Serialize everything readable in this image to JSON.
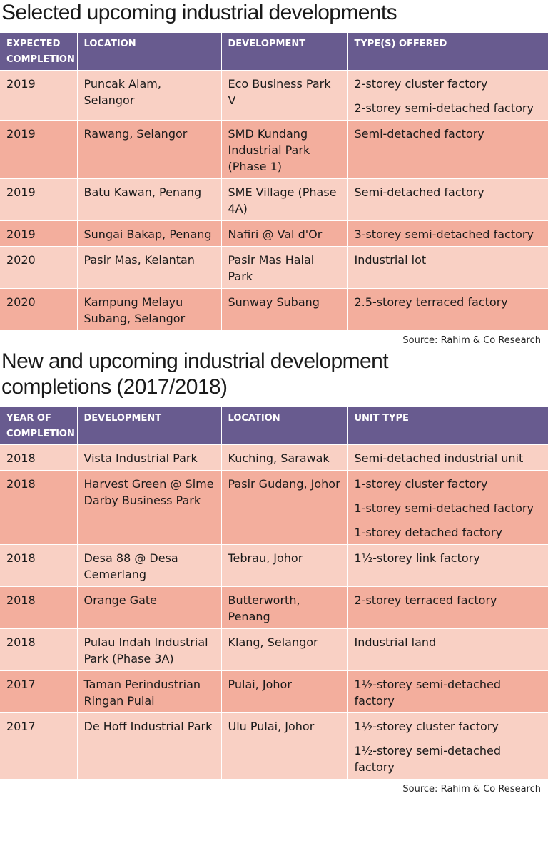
{
  "section1": {
    "title": "Selected upcoming industrial developments",
    "headers": [
      "EXPECTED COMPLETION",
      "LOCATION",
      "DEVELOPMENT",
      "TYPE(S) OFFERED"
    ],
    "rows": [
      {
        "year": "2019",
        "location": "Puncak Alam, Selangor",
        "development": "Eco Business Park V",
        "types": [
          "2-storey cluster factory",
          "2-storey semi-detached factory"
        ]
      },
      {
        "year": "2019",
        "location": "Rawang, Selangor",
        "development": "SMD Kundang Industrial Park (Phase 1)",
        "types": [
          "Semi-detached factory"
        ]
      },
      {
        "year": "2019",
        "location": "Batu Kawan, Penang",
        "development": "SME Village (Phase 4A)",
        "types": [
          "Semi-detached factory"
        ]
      },
      {
        "year": "2019",
        "location": "Sungai Bakap, Penang",
        "development": "Nafiri @ Val d'Or",
        "types": [
          "3-storey semi-detached factory"
        ]
      },
      {
        "year": "2020",
        "location": "Pasir Mas, Kelantan",
        "development": "Pasir Mas Halal Park",
        "types": [
          "Industrial lot"
        ]
      },
      {
        "year": "2020",
        "location": "Kampung Melayu Subang, Selangor",
        "development": "Sunway Subang",
        "types": [
          "2.5-storey terraced factory"
        ]
      }
    ],
    "source": "Source: Rahim & Co Research"
  },
  "section2": {
    "title": "New and upcoming industrial development completions (2017/2018)",
    "headers": [
      "YEAR OF COMPLETION",
      "DEVELOPMENT",
      "LOCATION",
      "UNIT TYPE"
    ],
    "rows": [
      {
        "year": "2018",
        "development": "Vista Industrial Park",
        "location": "Kuching, Sarawak",
        "types": [
          "Semi-detached industrial unit"
        ]
      },
      {
        "year": "2018",
        "development": "Harvest Green @ Sime Darby Business Park",
        "location": "Pasir Gudang, Johor",
        "types": [
          "1-storey cluster factory",
          "1-storey semi-detached factory",
          "1-storey detached factory"
        ]
      },
      {
        "year": "2018",
        "development": "Desa 88 @ Desa Cemerlang",
        "location": "Tebrau, Johor",
        "types": [
          "1½-storey link factory"
        ]
      },
      {
        "year": "2018",
        "development": "Orange Gate",
        "location": "Butterworth, Penang",
        "types": [
          "2-storey terraced factory"
        ]
      },
      {
        "year": "2018",
        "development": "Pulau Indah Industrial Park (Phase 3A)",
        "location": "Klang, Selangor",
        "types": [
          "Industrial land"
        ]
      },
      {
        "year": "2017",
        "development": "Taman Perindustrian Ringan Pulai",
        "location": "Pulai, Johor",
        "types": [
          "1½-storey semi-detached factory"
        ]
      },
      {
        "year": "2017",
        "development": "De Hoff Industrial Park",
        "location": "Ulu Pulai, Johor",
        "types": [
          "1½-storey cluster factory",
          "1½-storey semi-detached factory"
        ]
      }
    ],
    "source": "Source: Rahim & Co Research"
  },
  "colors": {
    "header_bg": "#685b8f",
    "row_light": "#f9d0c4",
    "row_dark": "#f3ae9d"
  }
}
